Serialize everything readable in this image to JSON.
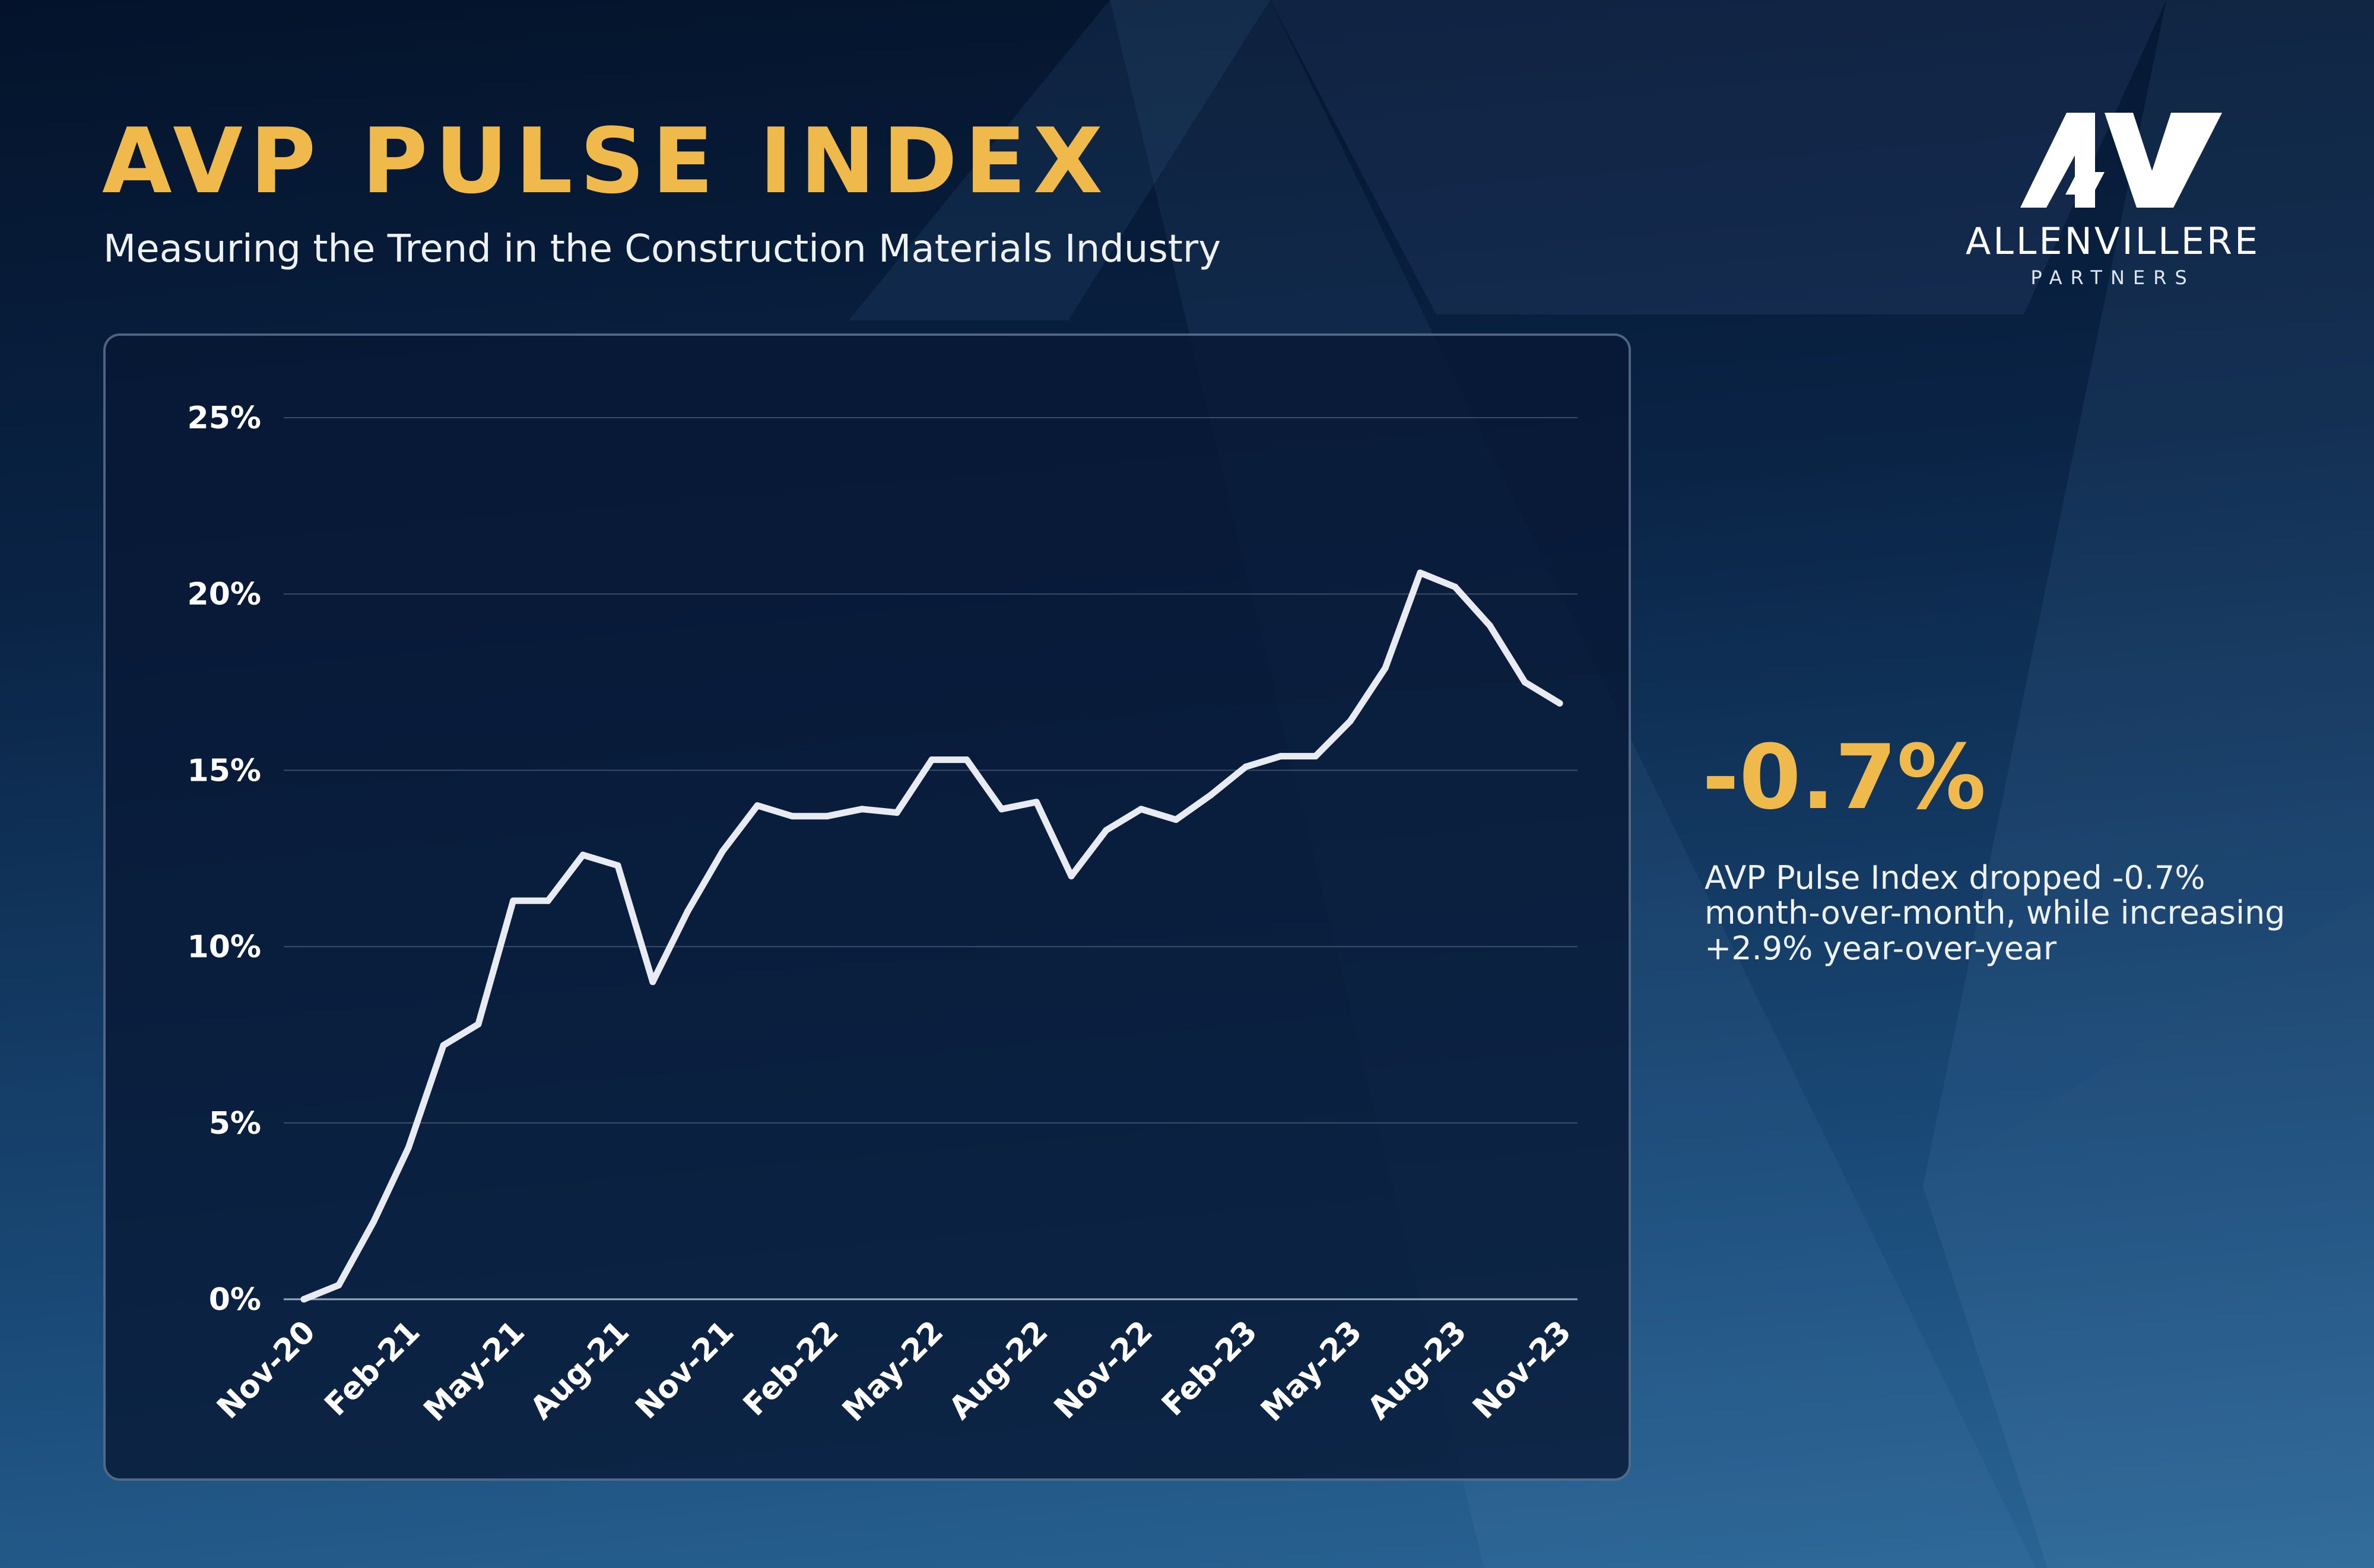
{
  "header": {
    "title": "AVP PULSE INDEX",
    "subtitle": "Measuring the Trend in the Construction Materials Industry"
  },
  "logo": {
    "name": "ALLENVILLERE",
    "sub": "PARTNERS"
  },
  "kpi": {
    "value": "-0.7%",
    "description": "AVP Pulse Index dropped -0.7% month-over-month, while increasing +2.9% year-over-year"
  },
  "colors": {
    "accent": "#f0b94c",
    "line": "#e8ecf2",
    "background_dark": "#04132b",
    "background_light": "#2a6696"
  },
  "chart_data": {
    "type": "line",
    "title": "",
    "xlabel": "",
    "ylabel": "",
    "ylim": [
      0,
      25
    ],
    "grid": true,
    "y_ticks": [
      "0%",
      "5%",
      "10%",
      "15%",
      "20%",
      "25%"
    ],
    "x_ticks": [
      "Nov-20",
      "Feb-21",
      "May-21",
      "Aug-21",
      "Nov-21",
      "Feb-22",
      "May-22",
      "Aug-22",
      "Nov-22",
      "Feb-23",
      "May-23",
      "Aug-23",
      "Nov-23"
    ],
    "x": [
      "Nov-20",
      "Dec-20",
      "Jan-21",
      "Feb-21",
      "Mar-21",
      "Apr-21",
      "May-21",
      "Jun-21",
      "Jul-21",
      "Aug-21",
      "Sep-21",
      "Oct-21",
      "Nov-21",
      "Dec-21",
      "Jan-22",
      "Feb-22",
      "Mar-22",
      "Apr-22",
      "May-22",
      "Jun-22",
      "Jul-22",
      "Aug-22",
      "Sep-22",
      "Oct-22",
      "Nov-22",
      "Dec-22",
      "Jan-23",
      "Feb-23",
      "Mar-23",
      "Apr-23",
      "May-23",
      "Jun-23",
      "Jul-23",
      "Aug-23",
      "Sep-23",
      "Oct-23",
      "Nov-23"
    ],
    "series": [
      {
        "values": [
          0.0,
          0.4,
          2.2,
          4.3,
          7.2,
          7.8,
          11.3,
          11.3,
          12.6,
          12.3,
          9.0,
          11.0,
          12.7,
          14.0,
          13.7,
          13.7,
          13.9,
          13.8,
          15.3,
          15.3,
          13.9,
          14.1,
          12.0,
          13.3,
          13.9,
          13.6,
          14.3,
          15.1,
          15.4,
          15.4,
          16.4,
          17.9,
          20.6,
          20.2,
          19.1,
          17.5,
          16.9
        ]
      }
    ]
  }
}
